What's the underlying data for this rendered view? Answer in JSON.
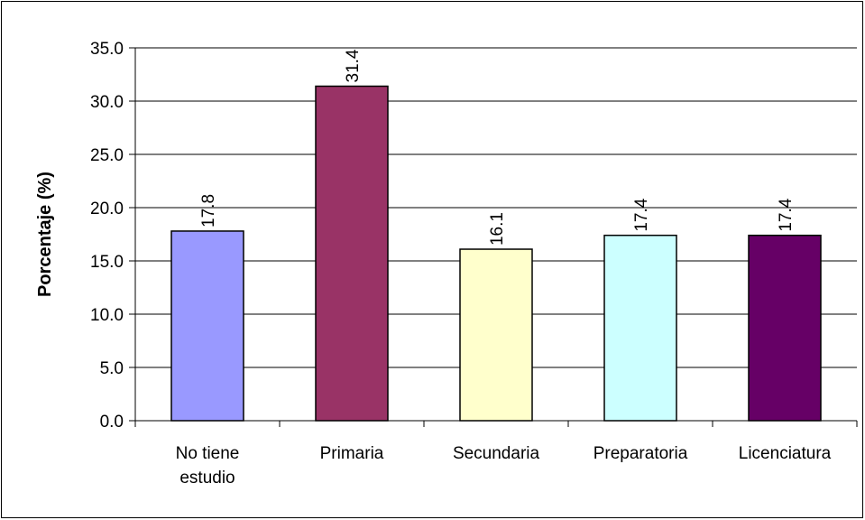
{
  "chart_data": {
    "type": "bar",
    "title": "",
    "xlabel": "",
    "ylabel": "Porcentaje (%)",
    "ylim": [
      0,
      35
    ],
    "ytick_step": 5,
    "ytick_decimals": 1,
    "grid": true,
    "legend": "none",
    "categories": [
      [
        "No tiene",
        "estudio"
      ],
      [
        "Primaria"
      ],
      [
        "Secundaria"
      ],
      [
        "Preparatoria"
      ],
      [
        "Licenciatura"
      ]
    ],
    "values": [
      17.8,
      31.4,
      16.1,
      17.4,
      17.4
    ],
    "data_labels": [
      "17.8",
      "31.4",
      "16.1",
      "17.4",
      "17.4"
    ],
    "colors": [
      "#9999FF",
      "#993366",
      "#FFFFCC",
      "#CCFFFF",
      "#660066"
    ]
  }
}
